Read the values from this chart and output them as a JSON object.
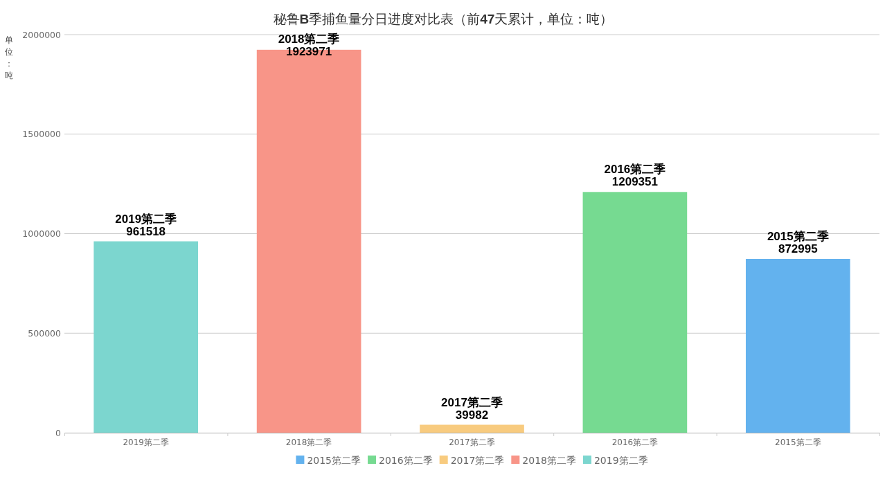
{
  "chart_data": {
    "type": "bar",
    "title": "秘鲁**B**季捕鱼量分日进度对比表（前**47**天累计，单位：吨）",
    "ylabel": "单位：吨",
    "categories": [
      "2019第二季",
      "2018第二季",
      "2017第二季",
      "2016第二季",
      "2015第二季"
    ],
    "series": [
      {
        "name": "2015第二季",
        "color": "#63b2ee",
        "values": [
          null,
          null,
          null,
          null,
          872995
        ]
      },
      {
        "name": "2016第二季",
        "color": "#76da91",
        "values": [
          null,
          null,
          null,
          1209351,
          null
        ]
      },
      {
        "name": "2017第二季",
        "color": "#f8cb7f",
        "values": [
          null,
          null,
          39982,
          null,
          null
        ]
      },
      {
        "name": "2018第二季",
        "color": "#f89588",
        "values": [
          null,
          1923971,
          null,
          null,
          null
        ]
      },
      {
        "name": "2019第二季",
        "color": "#7cd6cf",
        "values": [
          961518,
          null,
          null,
          null,
          null
        ]
      }
    ],
    "stacked": true,
    "ylim": [
      0,
      2000000
    ],
    "yticks": [
      0,
      500000,
      1000000,
      1500000,
      2000000
    ],
    "grid": "y",
    "legend": "bottom",
    "data_labels": true
  }
}
